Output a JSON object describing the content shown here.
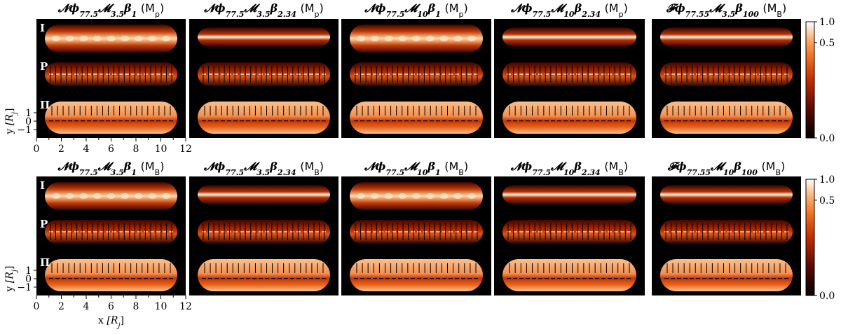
{
  "figure": {
    "rows": [
      {
        "panels": [
          {
            "title_main": "𝓝ϕ",
            "title_sub": "77.5",
            "title_main2": "𝓜",
            "title_sub2": "3.5",
            "title_main3": "β",
            "title_sub3": "1",
            "mode": "(M",
            "mode_sub": "p",
            "mode_end": ")"
          },
          {
            "title_main": "𝓝ϕ",
            "title_sub": "77.5",
            "title_main2": "𝓜",
            "title_sub2": "3.5",
            "title_main3": "β",
            "title_sub3": "2.34",
            "mode": "(M",
            "mode_sub": "p",
            "mode_end": ")"
          },
          {
            "title_main": "𝓝ϕ",
            "title_sub": "77.5",
            "title_main2": "𝓜",
            "title_sub2": "10",
            "title_main3": "β",
            "title_sub3": "1",
            "mode": "(M",
            "mode_sub": "p",
            "mode_end": ")"
          },
          {
            "title_main": "𝓝ϕ",
            "title_sub": "77.5",
            "title_main2": "𝓜",
            "title_sub2": "10",
            "title_main3": "β",
            "title_sub3": "2.34",
            "mode": "(M",
            "mode_sub": "p",
            "mode_end": ")"
          },
          {
            "title_main": "𝓕ϕ",
            "title_sub": "77.55",
            "title_main2": "𝓜",
            "title_sub2": "3.5",
            "title_main3": "β",
            "title_sub3": "100",
            "mode": "(M",
            "mode_sub": "B",
            "mode_end": ")"
          }
        ]
      },
      {
        "panels": [
          {
            "title_main": "𝓝ϕ",
            "title_sub": "77.5",
            "title_main2": "𝓜",
            "title_sub2": "3.5",
            "title_main3": "β",
            "title_sub3": "1",
            "mode": "(M",
            "mode_sub": "B",
            "mode_end": ")"
          },
          {
            "title_main": "𝓝ϕ",
            "title_sub": "77.5",
            "title_main2": "𝓜",
            "title_sub2": "3.5",
            "title_main3": "β",
            "title_sub3": "2.34",
            "mode": "(M",
            "mode_sub": "B",
            "mode_end": ")"
          },
          {
            "title_main": "𝓝ϕ",
            "title_sub": "77.5",
            "title_main2": "𝓜",
            "title_sub2": "10",
            "title_main3": "β",
            "title_sub3": "1",
            "mode": "(M",
            "mode_sub": "B",
            "mode_end": ")"
          },
          {
            "title_main": "𝓝ϕ",
            "title_sub": "77.5",
            "title_main2": "𝓜",
            "title_sub2": "10",
            "title_main3": "β",
            "title_sub3": "2.34",
            "mode": "(M",
            "mode_sub": "B",
            "mode_end": ")"
          },
          {
            "title_main": "𝓕ϕ",
            "title_sub": "77.55",
            "title_main2": "𝓜",
            "title_sub2": "10",
            "title_main3": "β",
            "title_sub3": "100",
            "mode": "(M",
            "mode_sub": "B",
            "mode_end": ")"
          }
        ]
      }
    ],
    "row_labels": [
      "I",
      "P",
      "Π"
    ],
    "x_ticks": [
      "0",
      "2",
      "4",
      "6",
      "8",
      "10",
      "12"
    ],
    "y_ticks": [
      "1",
      "0",
      "−1"
    ],
    "x_label_main": "x ",
    "x_label_unit": "[R",
    "x_label_sub": "j",
    "x_label_end": "]",
    "y_label_main": "y ",
    "y_label_unit": "[R",
    "y_label_sub": "j",
    "y_label_end": "]",
    "colorbar_ticks": [
      "1.0",
      "0.5",
      "0.0"
    ],
    "colors": {
      "background": "#000000",
      "hot": "#ffe8c8",
      "mid": "#e8551a",
      "dark": "#2a0400"
    }
  }
}
